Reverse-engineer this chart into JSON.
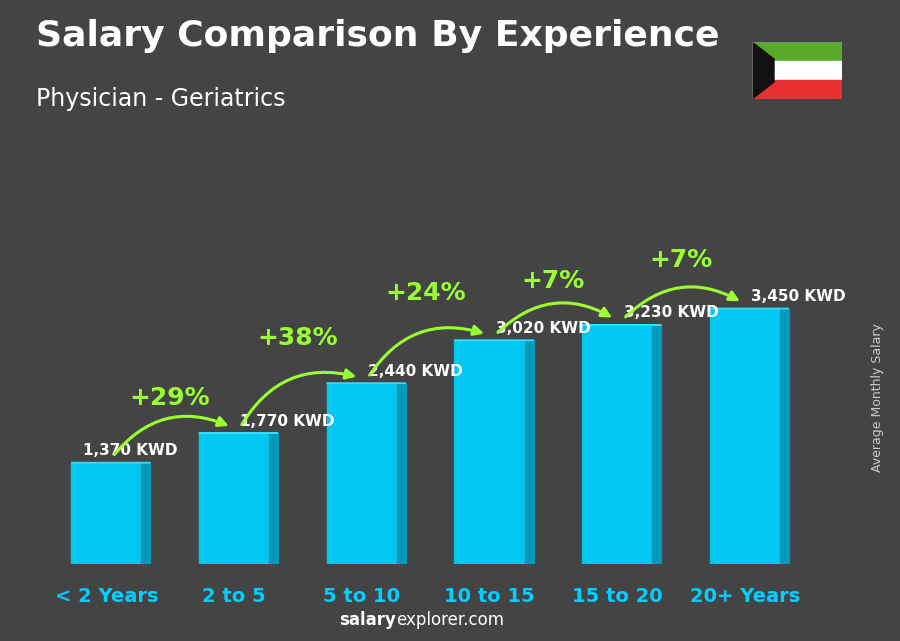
{
  "title": "Salary Comparison By Experience",
  "subtitle": "Physician - Geriatrics",
  "ylabel": "Average Monthly Salary",
  "watermark_bold": "salary",
  "watermark_rest": "explorer.com",
  "categories": [
    "< 2 Years",
    "2 to 5",
    "5 to 10",
    "10 to 15",
    "15 to 20",
    "20+ Years"
  ],
  "values": [
    1370,
    1770,
    2440,
    3020,
    3230,
    3450
  ],
  "labels": [
    "1,370 KWD",
    "1,770 KWD",
    "2,440 KWD",
    "3,020 KWD",
    "3,230 KWD",
    "3,450 KWD"
  ],
  "pct_changes": [
    "+29%",
    "+38%",
    "+24%",
    "+7%",
    "+7%"
  ],
  "bar_color_face": "#00c8f0",
  "bar_color_side": "#0099bb",
  "bar_color_top": "#33ddff",
  "background_color": "#444444",
  "title_color": "#ffffff",
  "label_color": "#ffffff",
  "category_color": "#00cfff",
  "pct_color": "#99ff33",
  "arrow_color": "#99ff33",
  "ylim": [
    0,
    4500
  ],
  "title_fontsize": 26,
  "subtitle_fontsize": 17,
  "label_fontsize": 11,
  "cat_fontsize": 14,
  "pct_fontsize": 18
}
